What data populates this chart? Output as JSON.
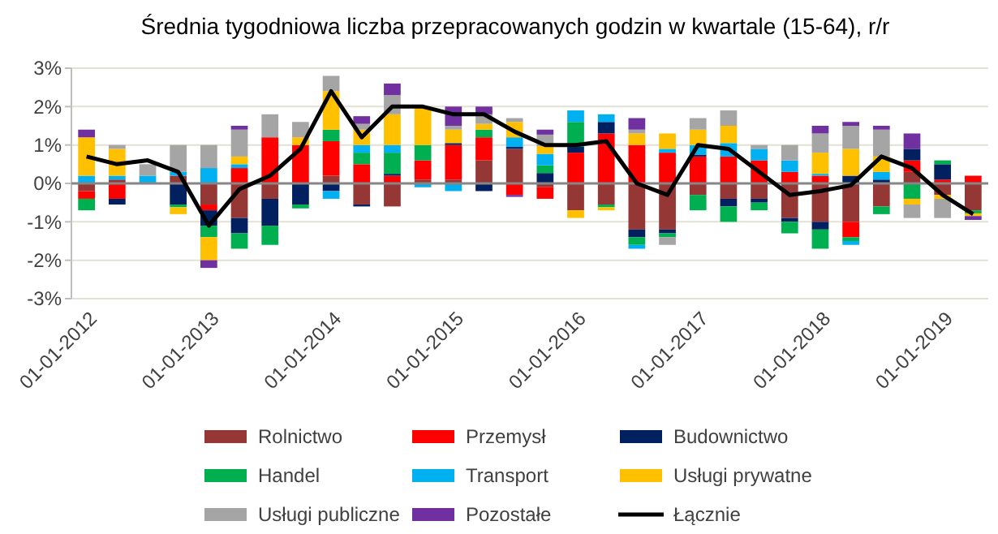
{
  "chart_data": {
    "type": "bar",
    "title": "Średnia tygodniowa liczba przepracowanych godzin w kwartale (15-64), r/r",
    "stacked": true,
    "grid": "y",
    "legend": "bottom",
    "categories": [
      "01-01-2012",
      null,
      null,
      null,
      "01-01-2013",
      null,
      null,
      null,
      "01-01-2014",
      null,
      null,
      null,
      "01-01-2015",
      null,
      null,
      null,
      "01-01-2016",
      null,
      null,
      null,
      "01-01-2017",
      null,
      null,
      null,
      "01-01-2018",
      null,
      null,
      null,
      "01-01-2019",
      null
    ],
    "ylim": [
      -3,
      3
    ],
    "yticks": [
      {
        "value": -3,
        "label": "-3%"
      },
      {
        "value": -2,
        "label": "-2%"
      },
      {
        "value": -1,
        "label": "-1%"
      },
      {
        "value": 0,
        "label": "0%"
      },
      {
        "value": 1,
        "label": "1%"
      },
      {
        "value": 2,
        "label": "2%"
      },
      {
        "value": 3,
        "label": "3%"
      }
    ],
    "series": [
      {
        "name": "Rolnictwo",
        "color": "#953735",
        "values": [
          -0.2,
          0.1,
          0,
          0.2,
          -0.55,
          -0.9,
          -0.4,
          null,
          0.2,
          -0.55,
          -0.6,
          0.1,
          0.1,
          0.6,
          0.9,
          -0.1,
          -0.7,
          -0.55,
          -1.2,
          -1.2,
          -0.3,
          -0.4,
          -0.4,
          -0.9,
          -1.0,
          -1.0,
          -0.6,
          0.3,
          -0.3,
          -0.7
        ]
      },
      {
        "name": "Przemysł",
        "color": "#ff0000",
        "values": [
          -0.2,
          -0.4,
          0,
          0,
          -0.15,
          0.4,
          1.2,
          1.0,
          0.9,
          0.5,
          0.2,
          0.5,
          0.9,
          0.6,
          -0.3,
          -0.3,
          0.8,
          1.3,
          1.0,
          0.8,
          0.7,
          0.7,
          0.6,
          0.3,
          0.2,
          -0.4,
          0,
          0.3,
          0.1,
          0.2
        ]
      },
      {
        "name": "Budownictwo",
        "color": "#002060",
        "values": [
          0,
          -0.15,
          0,
          -0.55,
          -0.4,
          -0.4,
          -0.7,
          -0.55,
          -0.2,
          -0.05,
          0.05,
          0,
          0.05,
          -0.2,
          0.05,
          0.27,
          0.15,
          0.3,
          -0.2,
          -0.1,
          0.05,
          -0.2,
          -0.1,
          -0.1,
          -0.2,
          0.2,
          0.1,
          0.3,
          0.4,
          0
        ]
      },
      {
        "name": "Handel",
        "color": "#00b050",
        "values": [
          -0.3,
          0,
          0,
          -0.07,
          -0.3,
          -0.4,
          -0.5,
          -0.1,
          0.3,
          0.3,
          0.55,
          0.4,
          0,
          0.2,
          0,
          0.2,
          0.65,
          -0.07,
          -0.2,
          -0.1,
          -0.4,
          -0.4,
          -0.2,
          -0.3,
          -0.5,
          -0.1,
          -0.2,
          -0.4,
          0.1,
          -0.08
        ]
      },
      {
        "name": "Transport",
        "color": "#00b0f0",
        "values": [
          0.2,
          0.1,
          0.2,
          0.1,
          0.4,
          0.1,
          0,
          0,
          -0.2,
          0.2,
          0.2,
          -0.1,
          -0.2,
          0,
          0.25,
          0.3,
          0.3,
          0.2,
          -0.1,
          0.1,
          0.25,
          0.35,
          0.3,
          0.3,
          0.05,
          -0.1,
          0.2,
          0,
          0,
          0
        ]
      },
      {
        "name": "Usługi prywatne",
        "color": "#ffc000",
        "values": [
          1.0,
          0.7,
          0,
          -0.18,
          -0.6,
          0.2,
          0,
          0.2,
          1.0,
          0.4,
          0.8,
          1.0,
          0.35,
          0.15,
          0.4,
          0.2,
          -0.2,
          -0.08,
          0.3,
          0.4,
          0.4,
          0.45,
          0,
          0,
          0.55,
          0.7,
          0.4,
          -0.15,
          -0.1,
          -0.07
        ]
      },
      {
        "name": "Usługi publiczne",
        "color": "#a5a5a5",
        "values": [
          0,
          0.1,
          0.3,
          0.7,
          0.6,
          0.7,
          0.6,
          0.4,
          0.4,
          0.15,
          0.5,
          null,
          0.1,
          0.25,
          0.1,
          0.3,
          0,
          0,
          0.1,
          -0.2,
          0.3,
          0.4,
          0.1,
          0.4,
          0.5,
          0.6,
          0.7,
          -0.35,
          -0.5,
          0
        ]
      },
      {
        "name": "Pozostałe",
        "color": "#7030a0",
        "values": [
          0.2,
          0,
          null,
          0,
          -0.2,
          0.1,
          0,
          0,
          0,
          0.2,
          0.3,
          0,
          0.5,
          0.2,
          -0.05,
          0.13,
          0,
          0,
          0.3,
          0,
          0,
          0,
          0,
          0,
          0.2,
          0.1,
          0.1,
          0.4,
          0,
          -0.1
        ]
      },
      {
        "name": "Łącznie",
        "type": "line",
        "color": "#000000",
        "marker": "none",
        "values": [
          0.7,
          0.5,
          0.6,
          0.3,
          -1.1,
          -0.15,
          0.2,
          0.9,
          2.4,
          1.2,
          2.0,
          2.0,
          1.8,
          1.8,
          1.35,
          1.0,
          1.0,
          1.1,
          0.0,
          -0.3,
          1.0,
          0.9,
          0.3,
          -0.3,
          -0.2,
          -0.05,
          0.7,
          0.4,
          -0.3,
          -0.8
        ]
      }
    ]
  }
}
